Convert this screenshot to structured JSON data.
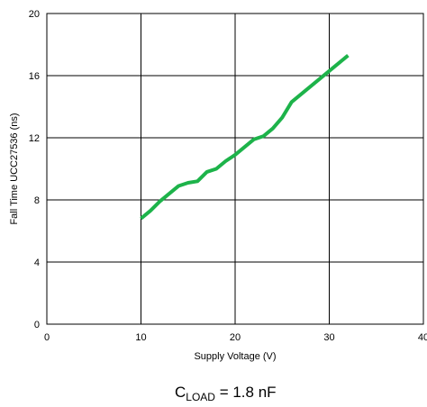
{
  "chart_data": {
    "type": "line",
    "title": "",
    "xlabel": "Supply Voltage (V)",
    "ylabel": "Fall Time UCC27536 (ns)",
    "xlim": [
      0,
      40
    ],
    "ylim": [
      0,
      20
    ],
    "xticks": [
      0,
      10,
      20,
      30,
      40
    ],
    "yticks": [
      0,
      4,
      8,
      12,
      16,
      20
    ],
    "xtick_labels": [
      "0",
      "10",
      "20",
      "30",
      "40"
    ],
    "ytick_labels": [
      "0",
      "4",
      "8",
      "12",
      "16",
      "20"
    ],
    "grid": true,
    "series": [
      {
        "color": "#1db34a",
        "x": [
          10,
          11,
          12,
          13,
          14,
          15,
          16,
          17,
          18,
          19,
          20,
          21,
          22,
          23,
          24,
          25,
          26,
          27,
          28,
          29,
          30,
          31,
          32
        ],
        "y": [
          6.8,
          7.3,
          7.9,
          8.4,
          8.9,
          9.1,
          9.2,
          9.8,
          10.0,
          10.5,
          10.9,
          11.4,
          11.9,
          12.1,
          12.6,
          13.3,
          14.3,
          14.8,
          15.3,
          15.8,
          16.3,
          16.8,
          17.3
        ]
      }
    ],
    "annotation": {
      "main": "C",
      "subscript": "LOAD",
      "rest": " = 1.8 nF"
    }
  }
}
